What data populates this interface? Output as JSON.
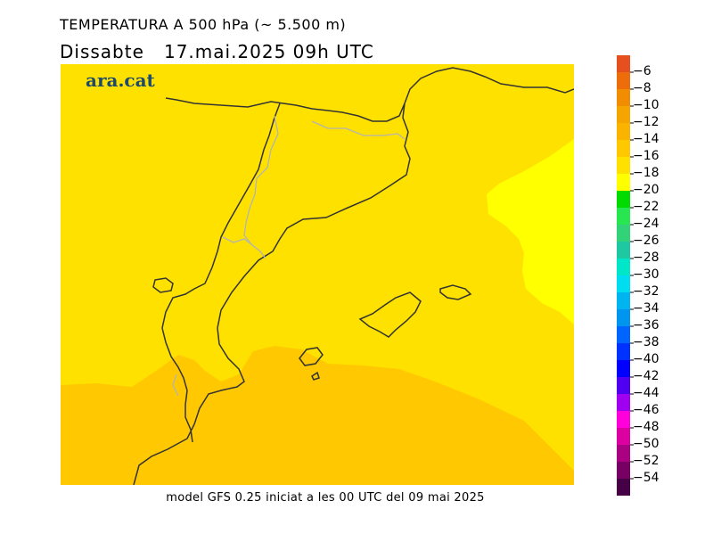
{
  "header": {
    "title": "TEMPERATURA A 500 hPa (~ 5.500 m)",
    "subtitle": "Dissabte   17.mai.2025 09h UTC"
  },
  "logo": {
    "text": "ara.cat"
  },
  "footer": {
    "text": "model GFS 0.25 iniciat a les 00 UTC del 09 mai 2025"
  },
  "map": {
    "field": "temperature_500hPa",
    "units": "°C",
    "regions": [
      {
        "range": "-18 to -16",
        "color": "#ffe100"
      },
      {
        "range": "-20 to -18",
        "color": "#ffff00"
      },
      {
        "range": "-16 to -14",
        "color": "#ffc800"
      }
    ],
    "coastline_color": "#333333",
    "border_color": "#b4b4b4"
  },
  "legend": {
    "levels": [
      {
        "label": "-6",
        "color": "#e5501e"
      },
      {
        "label": "-8",
        "color": "#ed6d0a"
      },
      {
        "label": "-10",
        "color": "#f28c00"
      },
      {
        "label": "-12",
        "color": "#f5a500"
      },
      {
        "label": "-14",
        "color": "#fab400"
      },
      {
        "label": "-16",
        "color": "#ffc800"
      },
      {
        "label": "-18",
        "color": "#ffe100"
      },
      {
        "label": "-20",
        "color": "#ffff00"
      },
      {
        "label": "-22",
        "color": "#00dc00"
      },
      {
        "label": "-24",
        "color": "#28e650"
      },
      {
        "label": "-26",
        "color": "#32d278"
      },
      {
        "label": "-28",
        "color": "#1ec8a0"
      },
      {
        "label": "-30",
        "color": "#00e6c8"
      },
      {
        "label": "-32",
        "color": "#00dcf0"
      },
      {
        "label": "-34",
        "color": "#00b4f0"
      },
      {
        "label": "-36",
        "color": "#0096f0"
      },
      {
        "label": "-38",
        "color": "#0064ff"
      },
      {
        "label": "-40",
        "color": "#0032ff"
      },
      {
        "label": "-42",
        "color": "#0000ff"
      },
      {
        "label": "-44",
        "color": "#5000f0"
      },
      {
        "label": "-46",
        "color": "#a000f0"
      },
      {
        "label": "-48",
        "color": "#ff00dc"
      },
      {
        "label": "-50",
        "color": "#dc00a0"
      },
      {
        "label": "-52",
        "color": "#aa0082"
      },
      {
        "label": "-54",
        "color": "#780064"
      },
      {
        "label": "",
        "color": "#460046"
      }
    ]
  }
}
